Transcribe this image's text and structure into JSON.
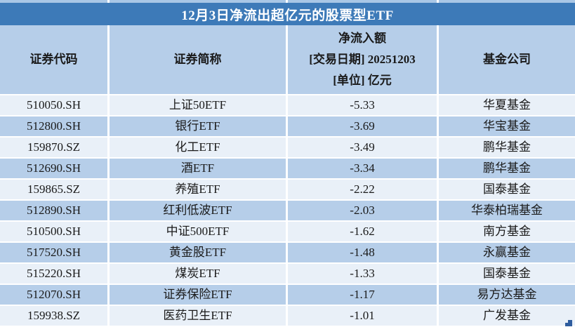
{
  "title": "12月3日净流出超亿元的股票型ETF",
  "header": {
    "code": "证券代码",
    "name": "证券简称",
    "flow_line1": "净流入额",
    "flow_line2": "[交易日期] 20251203",
    "flow_line3": "[单位] 亿元",
    "company": "基金公司"
  },
  "colors": {
    "title_bar_bg": "#3d7ab8",
    "title_text": "#ffffff",
    "header_bg": "#b6cee9",
    "row_light_bg": "#e9f0f8",
    "row_blue_bg": "#b6cee9",
    "divider": "#ffffff",
    "body_text": "#1a1a1a",
    "corner_mark": "#2e5c9e"
  },
  "chart_data": {
    "type": "table",
    "title": "12月3日净流出超亿元的股票型ETF",
    "columns": [
      "证券代码",
      "证券简称",
      "净流入额 [交易日期] 20251203 [单位] 亿元",
      "基金公司"
    ],
    "unit": "亿元",
    "trade_date": "20251203",
    "rows": [
      {
        "code": "510050.SH",
        "name": "上证50ETF",
        "flow": "-5.33",
        "company": "华夏基金"
      },
      {
        "code": "512800.SH",
        "name": "银行ETF",
        "flow": "-3.69",
        "company": "华宝基金"
      },
      {
        "code": "159870.SZ",
        "name": "化工ETF",
        "flow": "-3.49",
        "company": "鹏华基金"
      },
      {
        "code": "512690.SH",
        "name": "酒ETF",
        "flow": "-3.34",
        "company": "鹏华基金"
      },
      {
        "code": "159865.SZ",
        "name": "养殖ETF",
        "flow": "-2.22",
        "company": "国泰基金"
      },
      {
        "code": "512890.SH",
        "name": "红利低波ETF",
        "flow": "-2.03",
        "company": "华泰柏瑞基金"
      },
      {
        "code": "510500.SH",
        "name": "中证500ETF",
        "flow": "-1.62",
        "company": "南方基金"
      },
      {
        "code": "517520.SH",
        "name": "黄金股ETF",
        "flow": "-1.48",
        "company": "永赢基金"
      },
      {
        "code": "515220.SH",
        "name": "煤炭ETF",
        "flow": "-1.33",
        "company": "国泰基金"
      },
      {
        "code": "512070.SH",
        "name": "证券保险ETF",
        "flow": "-1.17",
        "company": "易方达基金"
      },
      {
        "code": "159938.SZ",
        "name": "医药卫生ETF",
        "flow": "-1.01",
        "company": "广发基金"
      }
    ]
  }
}
